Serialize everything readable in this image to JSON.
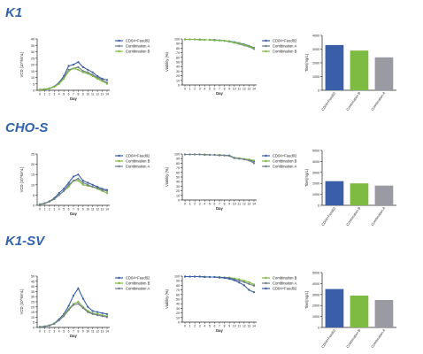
{
  "sections": [
    {
      "title": "K1",
      "charts": [
        {
          "type": "line",
          "xlabel": "Day",
          "ylabel": "VCD (10^6/mL)",
          "ylim": [
            0,
            40
          ],
          "yticks": [
            "0",
            "5",
            "10",
            "15",
            "20",
            "25",
            "30",
            "35",
            "40"
          ],
          "x": [
            0,
            1,
            2,
            3,
            4,
            5,
            6,
            7,
            8,
            9,
            10,
            11,
            12,
            13,
            14
          ],
          "series": [
            {
              "name": "CD04+Feed02",
              "color": "#3a5fa8",
              "values": [
                0.5,
                0.8,
                1.5,
                3,
                6,
                11,
                19,
                20,
                22,
                18,
                16,
                14,
                11,
                9,
                8
              ]
            },
            {
              "name": "Combination A",
              "color": "#6f7d8a",
              "values": [
                0.5,
                0.8,
                1.4,
                2.8,
                5.5,
                10,
                16,
                17,
                18,
                15,
                14,
                12,
                10,
                8,
                6
              ]
            },
            {
              "name": "Combination B",
              "color": "#7dbb42",
              "values": [
                0.5,
                0.8,
                1.4,
                2.6,
                5,
                9,
                15,
                17,
                16,
                14,
                13,
                11,
                9,
                7,
                5
              ]
            }
          ]
        },
        {
          "type": "line",
          "xlabel": "Day",
          "ylabel": "Viability (%)",
          "ylim": [
            0,
            100
          ],
          "yticks": [
            "0",
            "10",
            "20",
            "30",
            "40",
            "50",
            "60",
            "70",
            "80",
            "90",
            "100"
          ],
          "x": [
            0,
            1,
            2,
            3,
            4,
            5,
            6,
            7,
            8,
            9,
            10,
            11,
            12,
            13,
            14
          ],
          "series": [
            {
              "name": "CD04+Feed02",
              "color": "#3a5fa8",
              "values": [
                99,
                99,
                99,
                99,
                98,
                98,
                98,
                97,
                96,
                95,
                93,
                91,
                88,
                85,
                81
              ]
            },
            {
              "name": "Combination A",
              "color": "#6f7d8a",
              "values": [
                99,
                99,
                99,
                98,
                98,
                98,
                97,
                97,
                96,
                94,
                92,
                89,
                86,
                83,
                78
              ]
            },
            {
              "name": "Combination B",
              "color": "#7dbb42",
              "values": [
                99,
                99,
                99,
                99,
                98,
                98,
                97,
                97,
                96,
                95,
                92,
                90,
                87,
                84,
                80
              ]
            }
          ]
        },
        {
          "type": "bar",
          "ylabel": "Titer(mg/L)",
          "ylim": [
            0,
            4000
          ],
          "yticks": [
            "0",
            "1000",
            "2000",
            "3000",
            "4000"
          ],
          "categories": [
            "CD04+Feed02",
            "Combination B",
            "Combination A"
          ],
          "colors": [
            "#3a5fa8",
            "#7dbb42",
            "#9a9aa2"
          ],
          "values": [
            3300,
            2900,
            2400
          ]
        }
      ]
    },
    {
      "title": "CHO-S",
      "charts": [
        {
          "type": "line",
          "xlabel": "Day",
          "ylabel": "VCD (10^6/mL)",
          "ylim": [
            0,
            25
          ],
          "yticks": [
            "0",
            "5",
            "10",
            "15",
            "20",
            "25"
          ],
          "x": [
            0,
            1,
            2,
            3,
            4,
            5,
            6,
            7,
            8,
            9,
            10,
            11,
            12,
            13,
            14
          ],
          "series": [
            {
              "name": "CD04+Feed02",
              "color": "#3a5fa8",
              "values": [
                0.5,
                1,
                2,
                3.5,
                6,
                8,
                11,
                14,
                15,
                12,
                11,
                10,
                9,
                8,
                7.5
              ]
            },
            {
              "name": "Combination B",
              "color": "#7dbb42",
              "values": [
                0.5,
                0.9,
                1.8,
                3,
                5,
                7,
                9,
                12,
                12,
                10,
                9.5,
                9,
                8,
                7,
                6
              ]
            },
            {
              "name": "Combination A",
              "color": "#6f7d8a",
              "values": [
                0.5,
                0.9,
                1.8,
                3,
                5,
                7,
                10,
                12,
                13,
                11,
                10,
                9,
                8.5,
                7.5,
                7
              ]
            }
          ]
        },
        {
          "type": "line",
          "xlabel": "Day",
          "ylabel": "Viability (%)",
          "ylim": [
            0,
            100
          ],
          "yticks": [
            "0",
            "10",
            "20",
            "30",
            "40",
            "50",
            "60",
            "70",
            "80",
            "90",
            "100"
          ],
          "x": [
            0,
            1,
            2,
            3,
            4,
            5,
            6,
            7,
            8,
            9,
            10,
            11,
            12,
            13,
            14
          ],
          "series": [
            {
              "name": "CD04+Feed02",
              "color": "#3a5fa8",
              "values": [
                99,
                99,
                99,
                99,
                99,
                98,
                98,
                98,
                97,
                97,
                92,
                90,
                89,
                87,
                84
              ]
            },
            {
              "name": "Combination B",
              "color": "#7dbb42",
              "values": [
                99,
                99,
                99,
                99,
                99,
                98,
                98,
                98,
                97,
                96,
                92,
                91,
                89,
                88,
                86
              ]
            },
            {
              "name": "Combination A",
              "color": "#6f7d8a",
              "values": [
                99,
                99,
                99,
                99,
                98,
                98,
                98,
                97,
                97,
                96,
                91,
                90,
                88,
                86,
                80
              ]
            }
          ]
        },
        {
          "type": "bar",
          "ylabel": "Titer(mg/L)",
          "ylim": [
            0,
            5000
          ],
          "yticks": [
            "0",
            "1000",
            "2000",
            "3000",
            "4000",
            "5000"
          ],
          "categories": [
            "CD04+Feed02",
            "Combination B",
            "Combination A"
          ],
          "colors": [
            "#3a5fa8",
            "#7dbb42",
            "#9a9aa2"
          ],
          "values": [
            2200,
            2000,
            1800
          ]
        }
      ]
    },
    {
      "title": "K1-SV",
      "charts": [
        {
          "type": "line",
          "xlabel": "Day",
          "ylabel": "VCD (10^6/mL)",
          "ylim": [
            0,
            50
          ],
          "yticks": [
            "0",
            "5",
            "10",
            "15",
            "20",
            "25",
            "30",
            "35",
            "40",
            "45",
            "50"
          ],
          "x": [
            0,
            1,
            2,
            3,
            4,
            5,
            6,
            7,
            8,
            9,
            10,
            11,
            12,
            13,
            14
          ],
          "series": [
            {
              "name": "CD04+Feed02",
              "color": "#3a5fa8",
              "values": [
                0.5,
                1,
                2,
                4,
                8,
                13,
                21,
                31,
                38,
                28,
                20,
                16,
                15,
                14,
                13
              ]
            },
            {
              "name": "Combination B",
              "color": "#7dbb42",
              "values": [
                0.5,
                1,
                2,
                4,
                7,
                12,
                18,
                23,
                25,
                20,
                16,
                14,
                13,
                12,
                11
              ]
            },
            {
              "name": "Combination A",
              "color": "#6f7d8a",
              "values": [
                0.5,
                1,
                2,
                3.5,
                7,
                11,
                17,
                22,
                23,
                19,
                15,
                13,
                12,
                11,
                10
              ]
            }
          ]
        },
        {
          "type": "line",
          "xlabel": "Day",
          "ylabel": "Viability (%)",
          "ylim": [
            0,
            100
          ],
          "yticks": [
            "0",
            "10",
            "20",
            "30",
            "40",
            "50",
            "60",
            "70",
            "80",
            "90",
            "100"
          ],
          "x": [
            0,
            1,
            2,
            3,
            4,
            5,
            6,
            7,
            8,
            9,
            10,
            11,
            12,
            13,
            14
          ],
          "series": [
            {
              "name": "Combination B",
              "color": "#7dbb42",
              "values": [
                99,
                99,
                99,
                99,
                99,
                98,
                98,
                98,
                97,
                97,
                95,
                93,
                90,
                87,
                82
              ]
            },
            {
              "name": "Combination A",
              "color": "#6f7d8a",
              "values": [
                99,
                99,
                99,
                99,
                98,
                98,
                98,
                97,
                97,
                96,
                93,
                90,
                87,
                83,
                79
              ]
            },
            {
              "name": "CD04+Feed02",
              "color": "#3a5fa8",
              "values": [
                99,
                99,
                99,
                99,
                98,
                98,
                98,
                97,
                96,
                94,
                91,
                86,
                80,
                70,
                65
              ]
            }
          ]
        },
        {
          "type": "bar",
          "ylabel": "Titer(mg/L)",
          "ylim": [
            0,
            5000
          ],
          "yticks": [
            "0",
            "1000",
            "2000",
            "3000",
            "4000",
            "5000"
          ],
          "categories": [
            "CD04+Feed02",
            "Combination B",
            "Combination A"
          ],
          "colors": [
            "#3a5fa8",
            "#7dbb42",
            "#9a9aa2"
          ],
          "values": [
            3500,
            2900,
            2500
          ]
        }
      ]
    }
  ]
}
